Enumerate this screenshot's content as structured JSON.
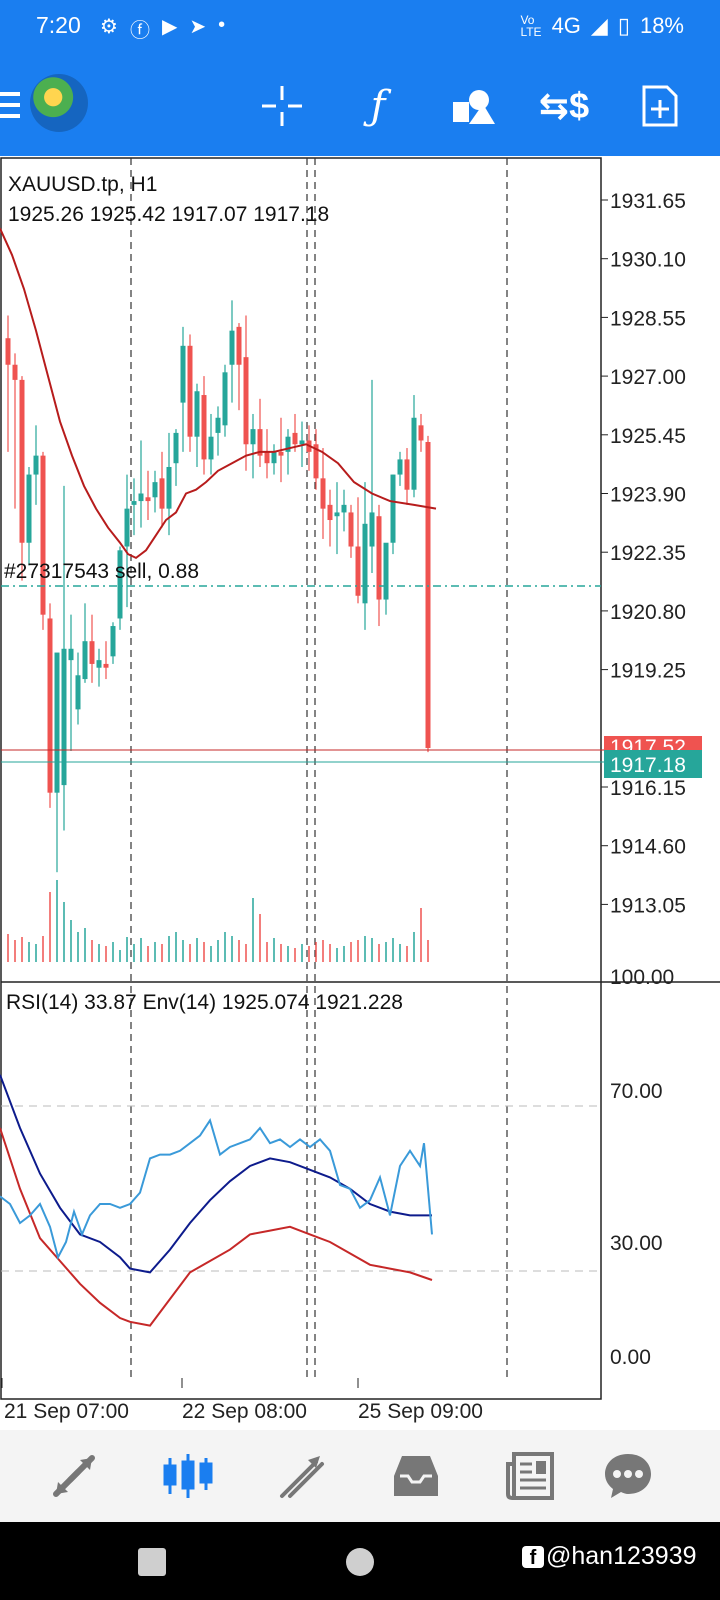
{
  "status": {
    "time": "7:20",
    "network": "4G",
    "battery": "18%"
  },
  "chart": {
    "symbol": "XAUUSD.tp, H1",
    "ohlc": "1925.26 1925.42 1917.07 1917.18",
    "price_ticks": [
      "1931.65",
      "1930.10",
      "1928.55",
      "1927.00",
      "1925.45",
      "1923.90",
      "1922.35",
      "1920.80",
      "1919.25",
      "1917.52",
      "1917.18",
      "1916.15",
      "1914.60",
      "1913.05"
    ],
    "order_label": "#27317543 sell, 0.88",
    "bid_label": "1917.52",
    "ask_label": "1917.18",
    "indicator_title": "RSI(14) 33.87 Env(14) 1925.074 1921.228",
    "rsi_ticks": [
      "100.00",
      "70.00",
      "30.00",
      "0.00"
    ],
    "time_labels": [
      "21 Sep 07:00",
      "22 Sep 08:00",
      "25 Sep 09:00"
    ],
    "colors": {
      "up": "#26a69a",
      "down": "#ef5350",
      "ma": "#b71c1c",
      "rsi": "#3a9ad9",
      "env_upper": "#0d1b8c",
      "env_lower": "#c62828"
    }
  },
  "watermark": "@han123939",
  "nav": {
    "items": [
      "trade-icon",
      "chart-icon",
      "history-icon",
      "inbox-icon",
      "news-icon",
      "chat-icon"
    ]
  }
}
